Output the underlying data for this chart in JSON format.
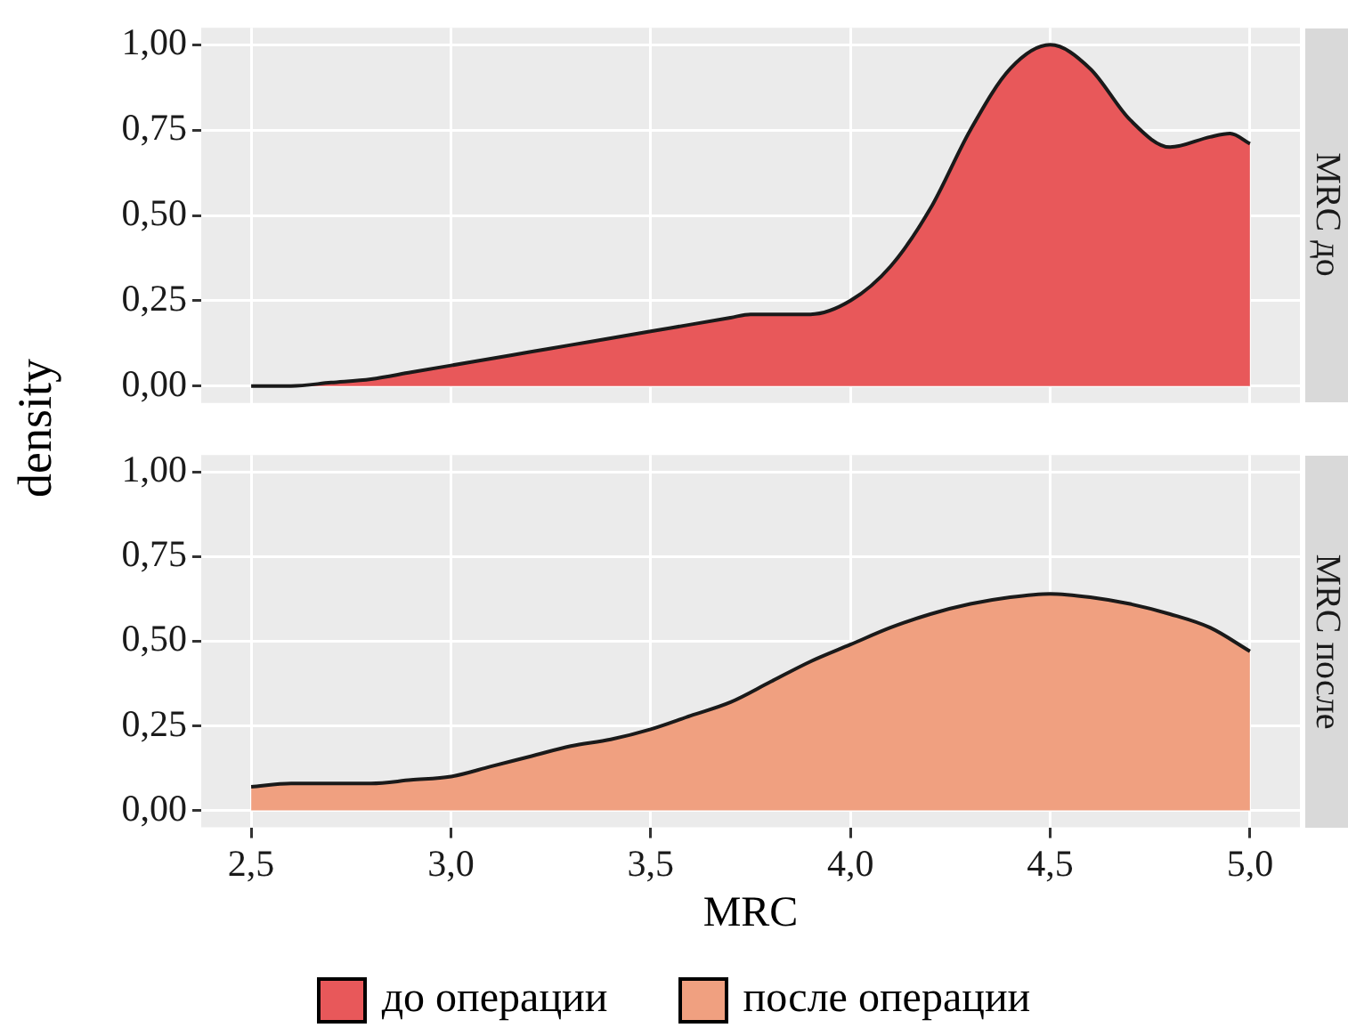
{
  "chart_data": [
    {
      "type": "area",
      "title": "MRC до",
      "ylabel": "density",
      "tick_labels": "y",
      "grid": true,
      "legend": "bottom",
      "marker": "none",
      "xlim": [
        2.375,
        5.125
      ],
      "ylim": [
        -0.05,
        1.05
      ],
      "xticks": [
        2.5,
        3,
        3.5,
        4,
        4.5,
        5
      ],
      "yticks": [
        {
          "value": 0,
          "label": "0,00"
        },
        {
          "value": 0.25,
          "label": "0,25"
        },
        {
          "value": 0.5,
          "label": "0,50"
        },
        {
          "value": 0.75,
          "label": "0,75"
        },
        {
          "value": 1,
          "label": "1,00"
        }
      ],
      "series": [
        {
          "name": "до операции",
          "color": "#e8585a",
          "x": [
            2.5,
            2.6,
            2.7,
            2.8,
            2.9,
            3.0,
            3.1,
            3.2,
            3.3,
            3.4,
            3.5,
            3.6,
            3.7,
            3.75,
            3.8,
            3.9,
            4.0,
            4.1,
            4.2,
            4.3,
            4.4,
            4.5,
            4.6,
            4.7,
            4.8,
            4.9,
            4.95,
            5.0
          ],
          "values": [
            0.0,
            0.0,
            0.01,
            0.02,
            0.04,
            0.06,
            0.08,
            0.1,
            0.12,
            0.14,
            0.16,
            0.18,
            0.2,
            0.21,
            0.21,
            0.21,
            0.25,
            0.35,
            0.52,
            0.75,
            0.93,
            1.0,
            0.93,
            0.78,
            0.7,
            0.73,
            0.74,
            0.71
          ]
        }
      ]
    },
    {
      "type": "area",
      "title": "MRC после",
      "xlabel": "MRC",
      "grid": true,
      "legend": "bottom",
      "marker": "none",
      "xlim": [
        2.375,
        5.125
      ],
      "ylim": [
        -0.05,
        1.05
      ],
      "xticks": [
        {
          "value": 2.5,
          "label": "2,5"
        },
        {
          "value": 3,
          "label": "3,0"
        },
        {
          "value": 3.5,
          "label": "3,5"
        },
        {
          "value": 4,
          "label": "4,0"
        },
        {
          "value": 4.5,
          "label": "4,5"
        },
        {
          "value": 5,
          "label": "5,0"
        }
      ],
      "yticks": [
        {
          "value": 0,
          "label": "0,00"
        },
        {
          "value": 0.25,
          "label": "0,25"
        },
        {
          "value": 0.5,
          "label": "0,50"
        },
        {
          "value": 0.75,
          "label": "0,75"
        },
        {
          "value": 1,
          "label": "1,00"
        }
      ],
      "series": [
        {
          "name": "после операции",
          "color": "#f0a080",
          "x": [
            2.5,
            2.6,
            2.7,
            2.8,
            2.9,
            3.0,
            3.1,
            3.2,
            3.3,
            3.4,
            3.5,
            3.6,
            3.7,
            3.8,
            3.9,
            4.0,
            4.1,
            4.2,
            4.3,
            4.4,
            4.5,
            4.6,
            4.7,
            4.8,
            4.9,
            5.0
          ],
          "values": [
            0.07,
            0.08,
            0.08,
            0.08,
            0.09,
            0.1,
            0.13,
            0.16,
            0.19,
            0.21,
            0.24,
            0.28,
            0.32,
            0.38,
            0.44,
            0.49,
            0.54,
            0.58,
            0.61,
            0.63,
            0.64,
            0.63,
            0.61,
            0.58,
            0.54,
            0.47
          ]
        }
      ]
    }
  ]
}
